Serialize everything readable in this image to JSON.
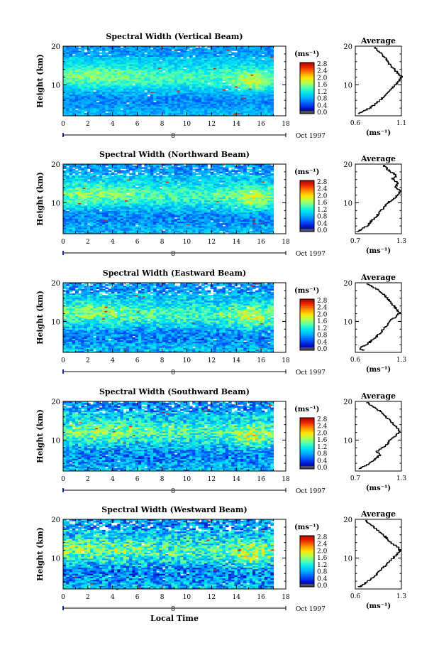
{
  "chart_data": [
    {
      "type": "heatmap",
      "title": "Spectral Width (Vertical Beam)",
      "ylabel": "Height (km)",
      "y_ticks": [
        "10",
        "20"
      ],
      "x_ticks": [
        "0",
        "2",
        "4",
        "6",
        "8",
        "10",
        "12",
        "14",
        "16",
        "18"
      ],
      "date_marker": "8",
      "date_label": "Oct 1997",
      "ylim": [
        2,
        20
      ],
      "xlim": [
        0,
        18
      ],
      "colorbar": {
        "unit": "(ms⁻¹)",
        "ticks": [
          "2.8",
          "2.4",
          "2.0",
          "1.6",
          "1.2",
          "0.8",
          "0.4",
          "0.0"
        ]
      },
      "profile": {
        "title": "Average",
        "xlabel": "(ms⁻¹)",
        "x_ticks": [
          "0.6",
          "1.1"
        ],
        "xlim": [
          0.6,
          1.1
        ],
        "y_ticks": [
          "10",
          "20"
        ],
        "heights": [
          2.5,
          3,
          4,
          5,
          6,
          7,
          8,
          9,
          10,
          11,
          12,
          13,
          14,
          15,
          16,
          17,
          18,
          19,
          19.8
        ],
        "values": [
          0.63,
          0.68,
          0.76,
          0.82,
          0.87,
          0.91,
          0.96,
          1.0,
          1.04,
          1.08,
          1.1,
          1.06,
          1.02,
          0.98,
          0.95,
          0.92,
          0.88,
          0.84,
          0.8
        ]
      }
    },
    {
      "type": "heatmap",
      "title": "Spectral Width (Northward Beam)",
      "ylabel": "Height (km)",
      "y_ticks": [
        "10",
        "20"
      ],
      "x_ticks": [
        "0",
        "2",
        "4",
        "6",
        "8",
        "10",
        "12",
        "14",
        "16",
        "18"
      ],
      "date_marker": "8",
      "date_label": "Oct 1997",
      "ylim": [
        2,
        20
      ],
      "xlim": [
        0,
        18
      ],
      "colorbar": {
        "unit": "(ms⁻¹)",
        "ticks": [
          "2.8",
          "2.4",
          "2.0",
          "1.6",
          "1.2",
          "0.8",
          "0.4",
          "0.0"
        ]
      },
      "profile": {
        "title": "Average",
        "xlabel": "(ms⁻¹)",
        "x_ticks": [
          "0.7",
          "1.3"
        ],
        "xlim": [
          0.7,
          1.3
        ],
        "y_ticks": [
          "10",
          "20"
        ],
        "heights": [
          2.5,
          3,
          4,
          5,
          6,
          7,
          8,
          9,
          10,
          11,
          12,
          13,
          14,
          15,
          16,
          17,
          18,
          19,
          19.8
        ],
        "values": [
          0.72,
          0.78,
          0.86,
          0.9,
          0.95,
          1.0,
          1.04,
          1.09,
          1.13,
          1.2,
          1.25,
          1.28,
          1.22,
          1.26,
          1.18,
          1.24,
          1.15,
          1.1,
          1.05
        ]
      }
    },
    {
      "type": "heatmap",
      "title": "Spectral Width (Eastward Beam)",
      "ylabel": "Height (km)",
      "y_ticks": [
        "10",
        "20"
      ],
      "x_ticks": [
        "0",
        "2",
        "4",
        "6",
        "8",
        "10",
        "12",
        "14",
        "16",
        "18"
      ],
      "date_marker": "8",
      "date_label": "Oct 1997",
      "ylim": [
        2,
        20
      ],
      "xlim": [
        0,
        18
      ],
      "colorbar": {
        "unit": "(ms⁻¹)",
        "ticks": [
          "2.8",
          "2.4",
          "2.0",
          "1.6",
          "1.2",
          "0.8",
          "0.4",
          "0.0"
        ]
      },
      "profile": {
        "title": "Average",
        "xlabel": "(ms⁻¹)",
        "x_ticks": [
          "0.6",
          "1.3"
        ],
        "xlim": [
          0.6,
          1.3
        ],
        "y_ticks": [
          "10",
          "20"
        ],
        "heights": [
          2.5,
          3,
          4,
          5,
          6,
          7,
          8,
          9,
          10,
          11,
          12,
          13,
          14,
          15,
          16,
          17,
          18,
          19,
          19.8
        ],
        "values": [
          0.72,
          0.66,
          0.78,
          0.85,
          0.92,
          0.98,
          1.03,
          1.08,
          1.12,
          1.2,
          1.27,
          1.24,
          1.18,
          1.14,
          1.08,
          1.02,
          0.95,
          0.85,
          0.78
        ]
      }
    },
    {
      "type": "heatmap",
      "title": "Spectral Width (Southward Beam)",
      "ylabel": "Height (km)",
      "y_ticks": [
        "10",
        "20"
      ],
      "x_ticks": [
        "0",
        "2",
        "4",
        "6",
        "8",
        "10",
        "12",
        "14",
        "16",
        "18"
      ],
      "date_marker": "8",
      "date_label": "Oct 1997",
      "ylim": [
        2,
        20
      ],
      "xlim": [
        0,
        18
      ],
      "colorbar": {
        "unit": "(ms⁻¹)",
        "ticks": [
          "2.8",
          "2.4",
          "2.0",
          "1.6",
          "1.2",
          "0.8",
          "0.4",
          "0.0"
        ]
      },
      "profile": {
        "title": "Average",
        "xlabel": "(ms⁻¹)",
        "x_ticks": [
          "0.7",
          "1.3"
        ],
        "xlim": [
          0.7,
          1.3
        ],
        "y_ticks": [
          "10",
          "20"
        ],
        "heights": [
          2.5,
          3,
          4,
          5,
          6,
          7,
          8,
          9,
          10,
          11,
          12,
          13,
          14,
          15,
          16,
          17,
          18,
          19,
          19.8
        ],
        "values": [
          0.74,
          0.8,
          0.9,
          0.96,
          1.02,
          0.98,
          1.06,
          1.12,
          1.16,
          1.22,
          1.28,
          1.25,
          1.2,
          1.15,
          1.1,
          1.05,
          0.98,
          0.9,
          0.84
        ]
      }
    },
    {
      "type": "heatmap",
      "title": "Spectral Width (Westward Beam)",
      "ylabel": "Height (km)",
      "y_ticks": [
        "10",
        "20"
      ],
      "x_ticks": [
        "0",
        "2",
        "4",
        "6",
        "8",
        "10",
        "12",
        "14",
        "16",
        "18"
      ],
      "date_marker": "8",
      "date_label": "Oct 1997",
      "xlabel": "Local Time",
      "ylim": [
        2,
        20
      ],
      "xlim": [
        0,
        18
      ],
      "colorbar": {
        "unit": "(ms⁻¹)",
        "ticks": [
          "2.8",
          "2.4",
          "2.0",
          "1.6",
          "1.2",
          "0.8",
          "0.4",
          "0.0"
        ]
      },
      "profile": {
        "title": "Average",
        "xlabel": "(ms⁻¹)",
        "x_ticks": [
          "0.6",
          "1.3"
        ],
        "xlim": [
          0.6,
          1.3
        ],
        "y_ticks": [
          "10",
          "20"
        ],
        "heights": [
          2.5,
          3,
          4,
          5,
          6,
          7,
          8,
          9,
          10,
          11,
          12,
          13,
          14,
          15,
          16,
          17,
          18,
          19,
          19.8
        ],
        "values": [
          0.66,
          0.72,
          0.8,
          0.88,
          0.94,
          1.0,
          1.06,
          1.12,
          1.18,
          1.24,
          1.28,
          1.22,
          1.14,
          1.08,
          1.02,
          0.95,
          0.88,
          0.8,
          0.74
        ]
      }
    }
  ]
}
